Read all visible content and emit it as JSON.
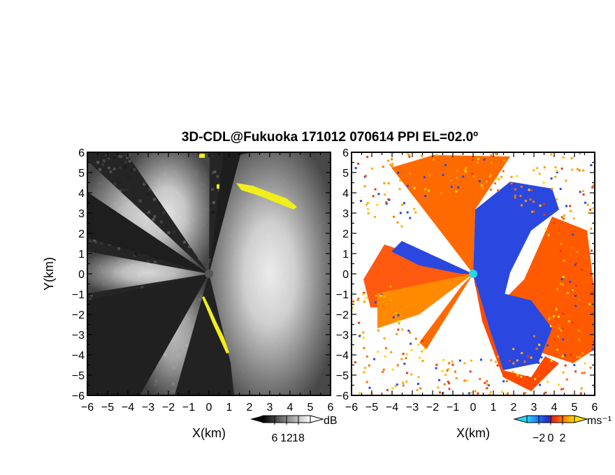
{
  "chart_data": [
    {
      "type": "heatmap",
      "title": "3D-CDL@Fukuoka 171012 070614 PPI EL=02.0º",
      "xlabel": "X(km)",
      "ylabel": "Y(km)",
      "xlim": [
        -6,
        6
      ],
      "ylim": [
        -6,
        6
      ],
      "x_ticks": [
        "-6",
        "-5",
        "-4",
        "-3",
        "-2",
        "-1",
        "0",
        "1",
        "2",
        "3",
        "4",
        "5",
        "6"
      ],
      "y_ticks": [
        "6",
        "5",
        "4",
        "3",
        "2",
        "1",
        "0",
        "-1",
        "-2",
        "-3",
        "-4",
        "-5",
        "-6"
      ],
      "colorbar": {
        "unit": "dB",
        "ticks": [
          "6",
          "12",
          "18"
        ],
        "values": [
          6,
          12,
          18
        ],
        "range": [
          0,
          24
        ]
      },
      "legend": "none",
      "grid": false
    },
    {
      "type": "heatmap",
      "xlabel": "X(km)",
      "xlim": [
        -6,
        6
      ],
      "ylim": [
        -6,
        6
      ],
      "x_ticks": [
        "-6",
        "-5",
        "-4",
        "-3",
        "-2",
        "-1",
        "0",
        "1",
        "2",
        "3",
        "4",
        "5",
        "6"
      ],
      "y_ticks": [
        "6",
        "5",
        "4",
        "3",
        "2",
        "1",
        "0",
        "-1",
        "-2",
        "-3",
        "-4",
        "-5",
        "-6"
      ],
      "colorbar": {
        "unit": "ms⁻¹",
        "ticks": [
          "-2",
          "0",
          "2"
        ],
        "values": [
          -2,
          0,
          2
        ],
        "range": [
          -4,
          4
        ]
      },
      "legend": "none",
      "grid": false
    }
  ],
  "colors": {
    "dark_background": "#1a1a1a",
    "echo_high": "#f2f2f2",
    "saturated": "#f2ee1c",
    "radar_site_left": "#555555",
    "radar_site_right": "#2ad6e0",
    "velocity_negative": "#1f3fd9",
    "velocity_positive": "#ff3a00",
    "velocity_high": "#ffcc00"
  }
}
